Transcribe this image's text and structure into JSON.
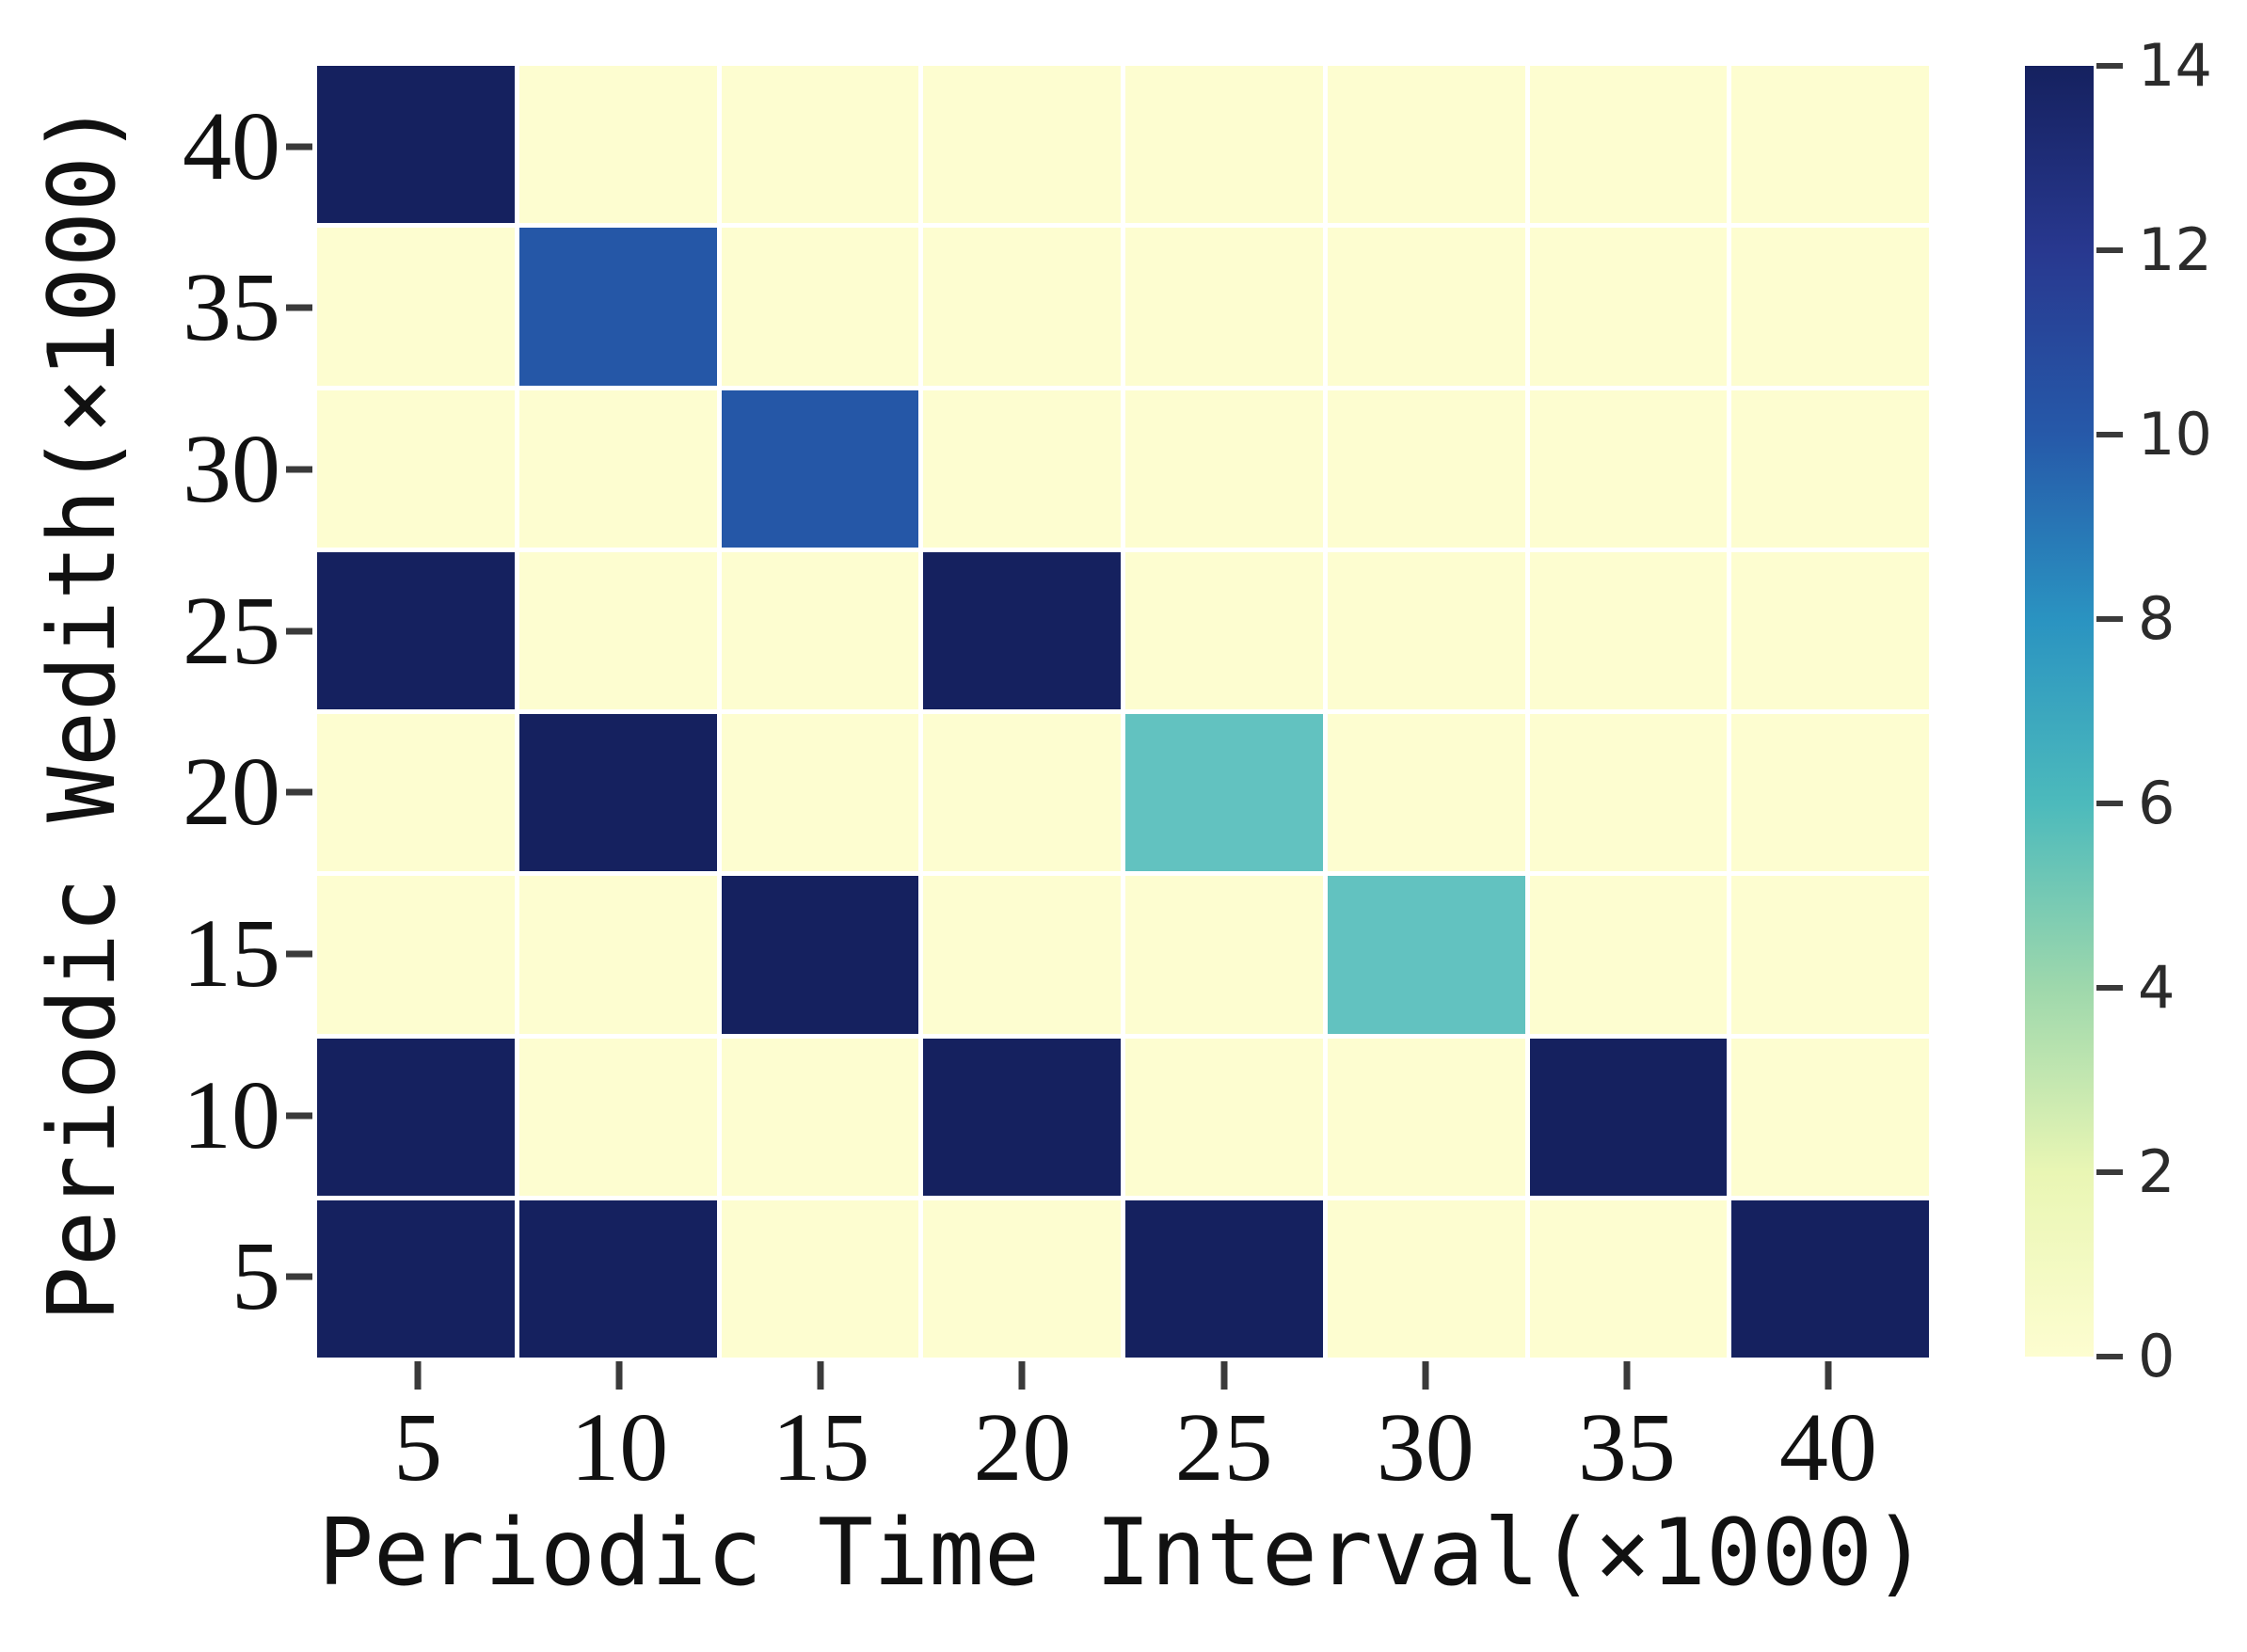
{
  "figure_type": "heatmap",
  "chart_data": {
    "type": "heatmap",
    "title": "",
    "xlabel": "Periodic Time Interval(×1000)",
    "ylabel": "Periodic Wedith(×1000)",
    "x_categories": [
      5,
      10,
      15,
      20,
      25,
      30,
      35,
      40
    ],
    "y_categories": [
      40,
      35,
      30,
      25,
      20,
      15,
      10,
      5
    ],
    "matrix": [
      [
        14,
        0,
        0,
        0,
        0,
        0,
        0,
        0
      ],
      [
        0,
        10,
        0,
        0,
        0,
        0,
        0,
        0
      ],
      [
        0,
        0,
        10,
        0,
        0,
        0,
        0,
        0
      ],
      [
        14,
        0,
        0,
        14,
        0,
        0,
        0,
        0
      ],
      [
        0,
        14,
        0,
        0,
        6,
        0,
        0,
        0
      ],
      [
        0,
        0,
        14,
        0,
        0,
        6,
        0,
        0
      ],
      [
        14,
        0,
        0,
        14,
        0,
        0,
        14,
        0
      ],
      [
        14,
        14,
        0,
        0,
        14,
        0,
        0,
        14
      ]
    ],
    "vmin": 0,
    "vmax": 14,
    "grid": true,
    "legend_position": "right-colorbar",
    "colormap": "YlGnBu",
    "colorbar": {
      "ticks": [
        14,
        12,
        10,
        8,
        6,
        4,
        2,
        0
      ],
      "stops": [
        {
          "value": 14,
          "color": "#15215f"
        },
        {
          "value": 12,
          "color": "#28388f"
        },
        {
          "value": 10,
          "color": "#2659a9"
        },
        {
          "value": 8,
          "color": "#2a93c1"
        },
        {
          "value": 6,
          "color": "#4cbabc"
        },
        {
          "value": 4,
          "color": "#9ed8ac"
        },
        {
          "value": 2,
          "color": "#e9f6b4"
        },
        {
          "value": 0,
          "color": "#fdfdd0"
        }
      ]
    },
    "palette": {
      "0": "#fdfdd0",
      "6": "#62c2c0",
      "10": "#2557a7",
      "14": "#15215f"
    },
    "cell_gap_color": "#ffffff",
    "tick_color": "#3a3a3a",
    "text_color": "#111111"
  }
}
